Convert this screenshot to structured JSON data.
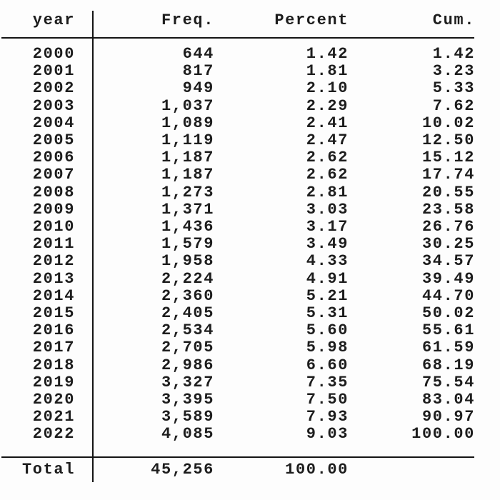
{
  "table": {
    "columns": {
      "year": "year",
      "freq": "Freq.",
      "percent": "Percent",
      "cum": "Cum."
    },
    "rows": [
      {
        "year": "2000",
        "freq": "644",
        "percent": "1.42",
        "cum": "1.42"
      },
      {
        "year": "2001",
        "freq": "817",
        "percent": "1.81",
        "cum": "3.23"
      },
      {
        "year": "2002",
        "freq": "949",
        "percent": "2.10",
        "cum": "5.33"
      },
      {
        "year": "2003",
        "freq": "1,037",
        "percent": "2.29",
        "cum": "7.62"
      },
      {
        "year": "2004",
        "freq": "1,089",
        "percent": "2.41",
        "cum": "10.02"
      },
      {
        "year": "2005",
        "freq": "1,119",
        "percent": "2.47",
        "cum": "12.50"
      },
      {
        "year": "2006",
        "freq": "1,187",
        "percent": "2.62",
        "cum": "15.12"
      },
      {
        "year": "2007",
        "freq": "1,187",
        "percent": "2.62",
        "cum": "17.74"
      },
      {
        "year": "2008",
        "freq": "1,273",
        "percent": "2.81",
        "cum": "20.55"
      },
      {
        "year": "2009",
        "freq": "1,371",
        "percent": "3.03",
        "cum": "23.58"
      },
      {
        "year": "2010",
        "freq": "1,436",
        "percent": "3.17",
        "cum": "26.76"
      },
      {
        "year": "2011",
        "freq": "1,579",
        "percent": "3.49",
        "cum": "30.25"
      },
      {
        "year": "2012",
        "freq": "1,958",
        "percent": "4.33",
        "cum": "34.57"
      },
      {
        "year": "2013",
        "freq": "2,224",
        "percent": "4.91",
        "cum": "39.49"
      },
      {
        "year": "2014",
        "freq": "2,360",
        "percent": "5.21",
        "cum": "44.70"
      },
      {
        "year": "2015",
        "freq": "2,405",
        "percent": "5.31",
        "cum": "50.02"
      },
      {
        "year": "2016",
        "freq": "2,534",
        "percent": "5.60",
        "cum": "55.61"
      },
      {
        "year": "2017",
        "freq": "2,705",
        "percent": "5.98",
        "cum": "61.59"
      },
      {
        "year": "2018",
        "freq": "2,986",
        "percent": "6.60",
        "cum": "68.19"
      },
      {
        "year": "2019",
        "freq": "3,327",
        "percent": "7.35",
        "cum": "75.54"
      },
      {
        "year": "2020",
        "freq": "3,395",
        "percent": "7.50",
        "cum": "83.04"
      },
      {
        "year": "2021",
        "freq": "3,589",
        "percent": "7.93",
        "cum": "90.97"
      },
      {
        "year": "2022",
        "freq": "4,085",
        "percent": "9.03",
        "cum": "100.00"
      }
    ],
    "total": {
      "label": "Total",
      "freq": "45,256",
      "percent": "100.00",
      "cum": ""
    }
  },
  "colors": {
    "text": "#1d1d1d",
    "line": "#141414",
    "background": "#fdfdfd"
  }
}
